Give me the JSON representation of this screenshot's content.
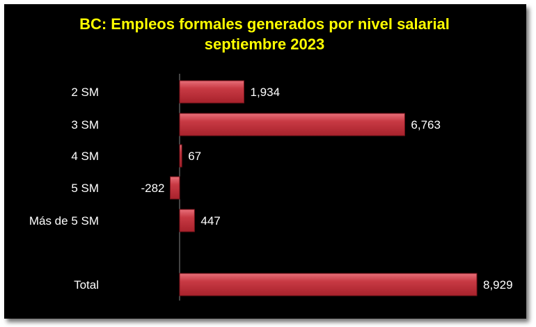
{
  "chart_data": {
    "type": "bar",
    "orientation": "horizontal",
    "title": "BC: Empleos formales generados por nivel salarial",
    "subtitle": "septiembre 2023",
    "categories": [
      "2 SM",
      "3 SM",
      "4 SM",
      "5 SM",
      "Más de 5 SM",
      "Total"
    ],
    "values": [
      1934,
      6763,
      67,
      -282,
      447,
      8929
    ],
    "value_labels": [
      "1,934",
      "6,763",
      "67",
      "-282",
      "447",
      "8,929"
    ],
    "xlabel": "",
    "ylabel": "",
    "grid": false,
    "legend": "none",
    "colors": {
      "bar": "#c0303a",
      "bar_light": "#e8707a",
      "background": "#000000",
      "title": "#ffff00",
      "text": "#ffffff",
      "axis": "#888888"
    }
  }
}
